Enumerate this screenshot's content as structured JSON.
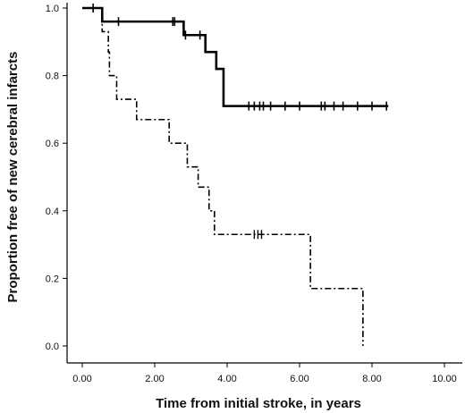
{
  "chart_data": {
    "type": "line",
    "subtype": "kaplan-meier step plot",
    "title": "",
    "xlabel": "Time from initial stroke, in years",
    "ylabel": "Proportion free of new cerebral infarcts",
    "xlim": [
      0,
      10
    ],
    "ylim": [
      0,
      1
    ],
    "x_ticks": [
      "0.00",
      "2.00",
      "4.00",
      "6.00",
      "8.00",
      "10.00"
    ],
    "y_ticks": [
      "0.0",
      "0.2",
      "0.4",
      "0.6",
      "0.8",
      "1.0"
    ],
    "grid": false,
    "legend": "none",
    "series": [
      {
        "style": "solid",
        "color": "#000000",
        "steps": [
          [
            0,
            1.0
          ],
          [
            0.55,
            0.96
          ],
          [
            2.8,
            0.92
          ],
          [
            3.4,
            0.87
          ],
          [
            3.7,
            0.82
          ],
          [
            3.9,
            0.71
          ]
        ],
        "end_x": 8.45,
        "censored": [
          [
            0.3,
            1.0
          ],
          [
            1.0,
            0.96
          ],
          [
            2.5,
            0.96
          ],
          [
            2.55,
            0.96
          ],
          [
            2.85,
            0.92
          ],
          [
            3.25,
            0.92
          ],
          [
            4.6,
            0.71
          ],
          [
            4.75,
            0.71
          ],
          [
            4.9,
            0.71
          ],
          [
            5.0,
            0.71
          ],
          [
            5.2,
            0.71
          ],
          [
            5.6,
            0.71
          ],
          [
            6.0,
            0.71
          ],
          [
            6.6,
            0.71
          ],
          [
            6.7,
            0.71
          ],
          [
            6.95,
            0.71
          ],
          [
            7.2,
            0.71
          ],
          [
            7.6,
            0.71
          ],
          [
            8.0,
            0.71
          ],
          [
            8.4,
            0.71
          ]
        ]
      },
      {
        "style": "dash-dot",
        "color": "#000000",
        "steps": [
          [
            0,
            1.0
          ],
          [
            0.55,
            0.93
          ],
          [
            0.72,
            0.87
          ],
          [
            0.75,
            0.8
          ],
          [
            0.95,
            0.73
          ],
          [
            1.5,
            0.67
          ],
          [
            2.4,
            0.6
          ],
          [
            2.9,
            0.53
          ],
          [
            3.2,
            0.47
          ],
          [
            3.5,
            0.4
          ],
          [
            3.65,
            0.33
          ],
          [
            6.3,
            0.17
          ],
          [
            7.75,
            0.0
          ]
        ],
        "end_x": 7.75,
        "censored": [
          [
            4.75,
            0.33
          ],
          [
            4.85,
            0.33
          ],
          [
            4.95,
            0.33
          ]
        ]
      }
    ]
  }
}
